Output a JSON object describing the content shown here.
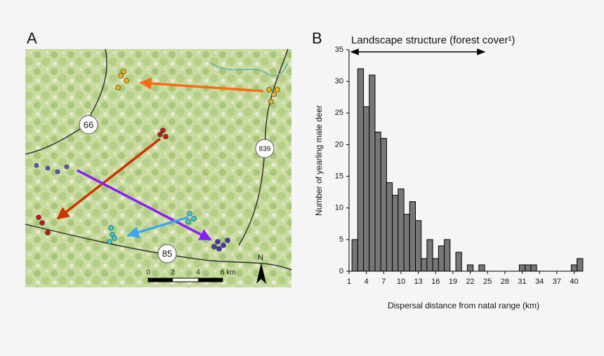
{
  "map": {
    "panel_label": "A",
    "road_labels": [
      "66",
      "839",
      "85"
    ],
    "scale_labels": [
      "0",
      "2",
      "4",
      "6 km"
    ],
    "north": "N"
  },
  "chart_data": {
    "type": "bar",
    "panel_label": "B",
    "annotation": "Landscape structure (forest cover¹)",
    "x_label": "Dispersal distance from natal range (km)",
    "y_label": "Number of yearling male deer",
    "x": [
      2,
      3,
      4,
      5,
      6,
      7,
      8,
      9,
      10,
      11,
      12,
      13,
      14,
      15,
      16,
      17,
      18,
      20,
      22,
      24,
      31,
      32,
      33,
      40,
      41
    ],
    "values": [
      5,
      32,
      26,
      31,
      22,
      21,
      14,
      12,
      13,
      9,
      11,
      8,
      2,
      5,
      2,
      4,
      5,
      3,
      1,
      1,
      1,
      1,
      1,
      1,
      2
    ],
    "color": "#777777",
    "xlim": [
      1,
      41.4
    ],
    "xticks": [
      1,
      4,
      7,
      10,
      13,
      16,
      19,
      22,
      25,
      28,
      31,
      34,
      37,
      40
    ],
    "ylim": [
      0,
      35
    ],
    "yticks": [
      0,
      5,
      10,
      15,
      20,
      25,
      30,
      35
    ]
  }
}
